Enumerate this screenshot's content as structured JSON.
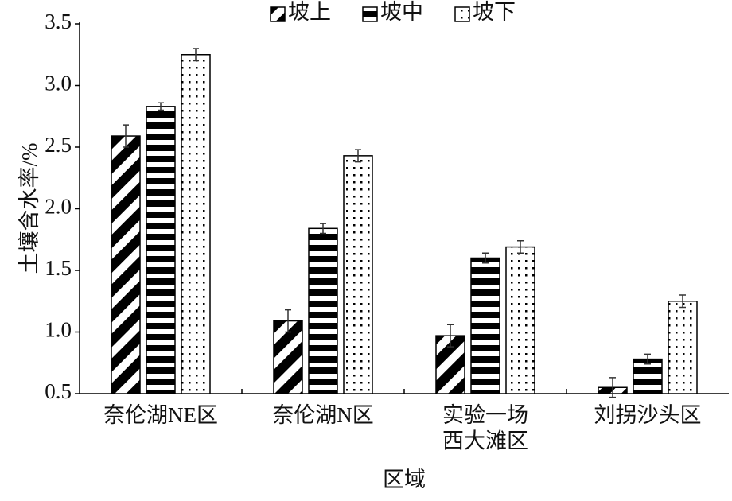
{
  "chart_data": {
    "type": "bar",
    "x_label": "区域",
    "y_label": "土壤含水率/%",
    "categories": [
      "奈伦湖NE区",
      "奈伦湖N区",
      "实验一场\n西大滩区",
      "刘拐沙头区"
    ],
    "series": [
      {
        "name": "坡上",
        "color": "#000000",
        "pattern": "diagonal",
        "values": [
          2.59,
          1.09,
          0.97,
          0.55
        ],
        "errors": [
          0.09,
          0.09,
          0.09,
          0.08
        ]
      },
      {
        "name": "坡中",
        "color": "#000000",
        "pattern": "horizontal",
        "values": [
          2.83,
          1.84,
          1.6,
          0.78
        ],
        "errors": [
          0.03,
          0.04,
          0.04,
          0.04
        ]
      },
      {
        "name": "坡下",
        "color": "#000000",
        "pattern": "dots",
        "values": [
          3.25,
          2.43,
          1.69,
          1.25
        ],
        "errors": [
          0.05,
          0.05,
          0.05,
          0.05
        ]
      }
    ],
    "ylim": [
      0.5,
      3.5
    ],
    "yticks": [
      0.5,
      {
        "value": 1,
        "label": "1.0"
      },
      1.5,
      {
        "value": 2,
        "label": "2.0"
      },
      2.5,
      {
        "value": 3,
        "label": "3.0"
      },
      3.5
    ],
    "legend": "top"
  }
}
